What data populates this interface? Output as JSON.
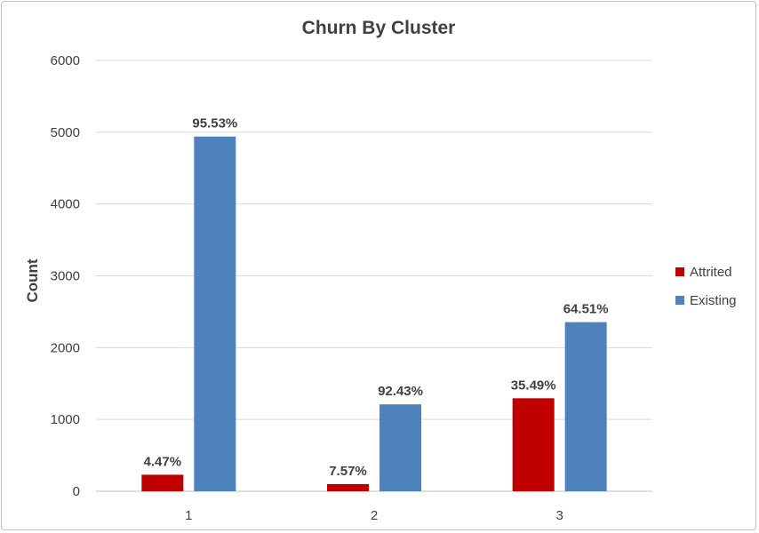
{
  "chart_data": {
    "type": "bar",
    "title": "Churn By Cluster",
    "xlabel": "",
    "ylabel": "Count",
    "ylim": [
      0,
      6000
    ],
    "yticks": [
      0,
      1000,
      2000,
      3000,
      4000,
      5000,
      6000
    ],
    "categories": [
      "1",
      "2",
      "3"
    ],
    "series": [
      {
        "name": "Attrited",
        "color": "#c00000",
        "values": [
          230,
          100,
          1295
        ],
        "labels": [
          "4.47%",
          "7.57%",
          "35.49%"
        ]
      },
      {
        "name": "Existing",
        "color": "#4f81bd",
        "values": [
          4940,
          1210,
          2355
        ],
        "labels": [
          "95.53%",
          "92.43%",
          "64.51%"
        ]
      }
    ],
    "grid": true,
    "legend_position": "right"
  }
}
